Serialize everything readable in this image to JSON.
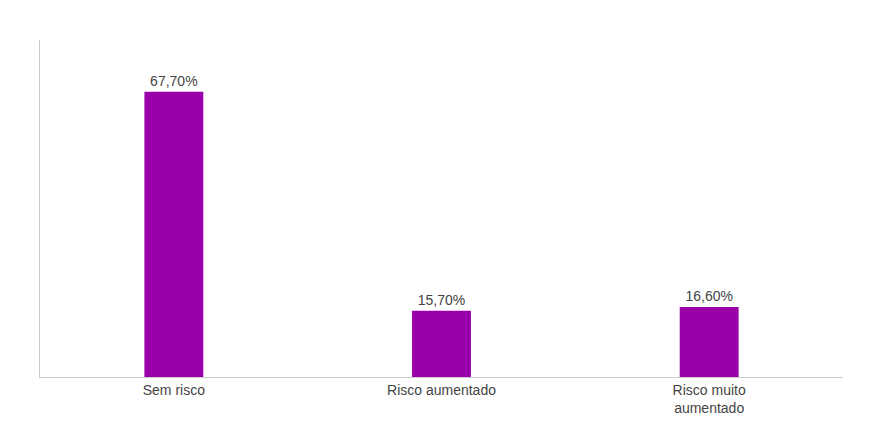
{
  "chart_data": {
    "type": "bar",
    "categories": [
      "Sem risco",
      "Risco aumentado",
      "Risco muito\naumentado"
    ],
    "values": [
      67.7,
      15.7,
      16.6
    ],
    "value_labels": [
      "67,70%",
      "15,70%",
      "16,60%"
    ],
    "color": "#9900aa",
    "ylim": [
      0,
      80
    ],
    "grid": false,
    "data_labels": true,
    "tick_labels": "x"
  }
}
